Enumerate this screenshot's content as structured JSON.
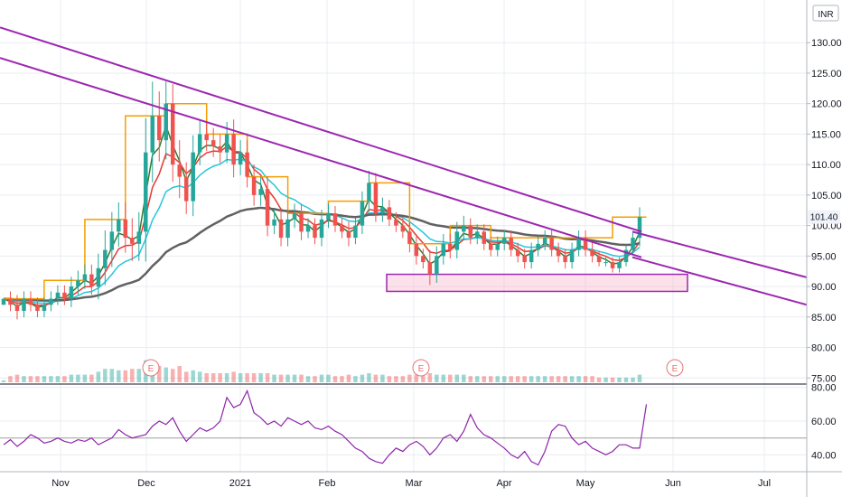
{
  "chart_data": {
    "type": "candlestick",
    "currency_label": "INR",
    "last_price_label": "101.40",
    "price_axis": {
      "ylim": [
        74,
        137
      ],
      "ticks": [
        "130.00",
        "125.00",
        "120.00",
        "115.00",
        "110.00",
        "105.00",
        "100.00",
        "95.00",
        "90.00",
        "85.00",
        "80.00",
        "75.00"
      ],
      "tick_values": [
        130,
        125,
        120,
        115,
        110,
        105,
        100,
        95,
        90,
        85,
        80,
        75
      ]
    },
    "rsi_axis": {
      "ylim": [
        30,
        82
      ],
      "ticks": [
        "80.00",
        "60.00",
        "40.00"
      ],
      "tick_values": [
        80,
        60,
        40
      ],
      "band_lines": [
        50
      ]
    },
    "time_axis": {
      "labels": [
        "Nov",
        "Dec",
        "2021",
        "Feb",
        "Mar",
        "Apr",
        "May",
        "Jun",
        "Jul"
      ]
    },
    "earnings_markers": [
      "E",
      "E",
      "E"
    ],
    "trendlines": [
      {
        "name": "upper",
        "from": [
          0,
          132.5
        ],
        "to": [
          1,
          99.0
        ]
      },
      {
        "name": "lower",
        "from": [
          0,
          127.5
        ],
        "to": [
          1,
          94.8
        ]
      },
      {
        "name": "upper-ext",
        "from": [
          0,
          99.0
        ],
        "to": [
          1,
          91.5
        ]
      },
      {
        "name": "lower-ext",
        "from": [
          0,
          94.8
        ],
        "to": [
          1,
          87.0
        ]
      }
    ],
    "support_zone": {
      "low": 89.2,
      "high": 92.0
    },
    "price_path": [
      [
        88,
        0
      ],
      [
        87,
        3
      ],
      [
        86,
        4
      ],
      [
        88,
        3
      ],
      [
        87,
        3
      ],
      [
        86,
        3
      ],
      [
        87,
        3
      ],
      [
        88,
        3
      ],
      [
        89,
        3
      ],
      [
        88,
        3
      ],
      [
        90,
        4
      ],
      [
        91,
        4
      ],
      [
        92,
        4
      ],
      [
        90,
        4
      ],
      [
        93,
        6
      ],
      [
        96,
        8
      ],
      [
        99,
        8
      ],
      [
        101,
        7
      ],
      [
        98,
        7
      ],
      [
        97,
        8
      ],
      [
        99,
        8
      ],
      [
        112,
        14
      ],
      [
        118,
        14
      ],
      [
        114,
        10
      ],
      [
        120,
        9
      ],
      [
        110,
        8
      ],
      [
        108,
        10
      ],
      [
        104,
        6
      ],
      [
        112,
        7
      ],
      [
        115,
        6
      ],
      [
        114,
        5
      ],
      [
        113,
        5
      ],
      [
        112,
        5
      ],
      [
        115,
        5
      ],
      [
        110,
        6
      ],
      [
        112,
        5
      ],
      [
        108,
        5
      ],
      [
        105,
        5
      ],
      [
        106,
        5
      ],
      [
        100,
        5
      ],
      [
        101,
        4
      ],
      [
        98,
        4
      ],
      [
        101,
        4
      ],
      [
        102,
        4
      ],
      [
        99,
        4
      ],
      [
        100,
        3
      ],
      [
        98,
        3
      ],
      [
        101,
        4
      ],
      [
        102,
        4
      ],
      [
        100,
        3
      ],
      [
        99,
        3
      ],
      [
        98,
        4
      ],
      [
        100,
        3
      ],
      [
        104,
        4
      ],
      [
        107,
        5
      ],
      [
        102,
        4
      ],
      [
        103,
        4
      ],
      [
        101,
        3
      ],
      [
        100,
        3
      ],
      [
        99,
        3
      ],
      [
        97,
        4
      ],
      [
        95,
        4
      ],
      [
        94,
        3
      ],
      [
        92,
        5
      ],
      [
        95,
        4
      ],
      [
        97,
        4
      ],
      [
        96,
        4
      ],
      [
        99,
        4
      ],
      [
        100,
        4
      ],
      [
        98,
        3
      ],
      [
        99,
        3
      ],
      [
        97,
        3
      ],
      [
        96,
        3
      ],
      [
        97,
        3
      ],
      [
        98,
        3
      ],
      [
        96,
        3
      ],
      [
        95,
        3
      ],
      [
        94,
        3
      ],
      [
        96,
        3
      ],
      [
        97,
        3
      ],
      [
        98,
        3
      ],
      [
        96,
        3
      ],
      [
        95,
        3
      ],
      [
        94,
        3
      ],
      [
        96,
        3
      ],
      [
        98,
        3
      ],
      [
        96,
        3
      ],
      [
        95,
        3
      ],
      [
        94,
        2
      ],
      [
        94,
        2
      ],
      [
        93,
        2
      ],
      [
        94,
        2
      ],
      [
        96,
        2
      ],
      [
        98,
        2
      ],
      [
        101.4,
        4
      ]
    ],
    "rsi": [
      46,
      49,
      45,
      48,
      52,
      50,
      47,
      48,
      50,
      48,
      47,
      49,
      48,
      50,
      46,
      48,
      50,
      55,
      52,
      50,
      51,
      52,
      57,
      60,
      58,
      62,
      54,
      48,
      52,
      56,
      54,
      56,
      60,
      74,
      68,
      70,
      78,
      65,
      62,
      58,
      60,
      57,
      62,
      60,
      58,
      60,
      56,
      55,
      57,
      54,
      52,
      48,
      44,
      42,
      38,
      36,
      35,
      40,
      44,
      42,
      46,
      48,
      45,
      40,
      44,
      50,
      52,
      48,
      54,
      64,
      56,
      52,
      50,
      47,
      44,
      40,
      38,
      42,
      36,
      34,
      42,
      54,
      58,
      57,
      50,
      46,
      48,
      44,
      42,
      40,
      42,
      46,
      46,
      44,
      44,
      70
    ]
  }
}
